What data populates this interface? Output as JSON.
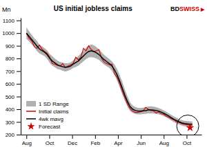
{
  "chart_data": {
    "type": "line",
    "title": "US initial jobless claims",
    "y_label": "Mn",
    "annotations": [
      {
        "text": "BD"
      },
      {
        "text": "SWISS",
        "color": "#cc0000"
      },
      {
        "text": "▶",
        "color": "#cc0000"
      }
    ],
    "xlim": [
      -0.5,
      15.3
    ],
    "xticks": [
      {
        "value": 0,
        "label": "Aug"
      },
      {
        "value": 2,
        "label": "Oct"
      },
      {
        "value": 4,
        "label": "Dec"
      },
      {
        "value": 6,
        "label": "Feb"
      },
      {
        "value": 8,
        "label": "Apr"
      },
      {
        "value": 10,
        "label": "Jun"
      },
      {
        "value": 12,
        "label": "Aug"
      },
      {
        "value": 14,
        "label": "Oct"
      }
    ],
    "ylim": [
      200,
      1120
    ],
    "yticks": [
      200,
      300,
      400,
      500,
      600,
      700,
      800,
      900,
      1000,
      1100
    ],
    "grid": false,
    "legend": "lower left",
    "x": [
      0,
      0.2265625,
      0.453125,
      0.6796875,
      0.90625,
      1.1328125,
      1.359375,
      1.5859375,
      1.8125,
      2.0390625,
      2.265625,
      2.4921875,
      2.71875,
      2.9453125,
      3.171875,
      3.3984375,
      3.625,
      3.8515625,
      4.078125,
      4.3046875,
      4.53125,
      4.7578125,
      4.984375,
      5.2109375,
      5.4375,
      5.6640625,
      5.890625,
      6.1171875,
      6.34375,
      6.5703125,
      6.796875,
      7.0234375,
      7.25,
      7.4765625,
      7.703125,
      7.9296875,
      8.15625,
      8.3828125,
      8.609375,
      8.8359375,
      9.0625,
      9.2890625,
      9.515625,
      9.7421875,
      9.96875,
      10.1953125,
      10.421875,
      10.6484375,
      10.875,
      11.1015625,
      11.328125,
      11.5546875,
      11.78125,
      12.0078125,
      12.234375,
      12.4609375,
      12.6875,
      12.9140625,
      13.140625,
      13.3671875,
      13.59375,
      13.8203125,
      14.046875,
      14.2734375,
      14.5
    ],
    "series": [
      {
        "name": "1 SD Range",
        "type": "area",
        "color": "#b0b0b0",
        "upper": [
          1045,
          1015,
          988,
          960,
          940,
          910,
          895,
          882,
          863,
          835,
          818,
          800,
          783,
          772,
          767,
          763,
          763,
          768,
          785,
          803,
          818,
          840,
          862,
          885,
          903,
          910,
          903,
          890,
          872,
          850,
          828,
          811,
          795,
          778,
          752,
          715,
          668,
          615,
          555,
          500,
          455,
          430,
          418,
          411,
          410,
          413,
          416,
          422,
          423,
          420,
          416,
          410,
          402,
          391,
          380,
          367,
          354,
          342,
          332,
          322,
          314,
          310,
          307,
          305,
          304
        ],
        "lower": [
          955,
          935,
          912,
          890,
          860,
          840,
          829,
          818,
          797,
          765,
          742,
          730,
          717,
          712,
          703,
          697,
          703,
          712,
          725,
          733,
          742,
          760,
          778,
          795,
          807,
          810,
          807,
          800,
          788,
          770,
          752,
          739,
          725,
          702,
          668,
          625,
          572,
          515,
          465,
          420,
          385,
          370,
          362,
          359,
          360,
          363,
          364,
          368,
          367,
          366,
          364,
          360,
          354,
          345,
          336,
          323,
          310,
          298,
          288,
          278,
          270,
          266,
          263,
          261,
          260
        ]
      },
      {
        "name": "Initial claims",
        "type": "line",
        "color": "#cc0000",
        "values": [
          1000,
          960,
          940,
          895,
          880,
          905,
          875,
          855,
          840,
          810,
          760,
          755,
          745,
          740,
          760,
          730,
          740,
          750,
          760,
          810,
          790,
          810,
          880,
          860,
          900,
          870,
          855,
          860,
          870,
          800,
          770,
          760,
          750,
          755,
          680,
          650,
          600,
          540,
          490,
          440,
          405,
          385,
          375,
          375,
          380,
          385,
          415,
          400,
          390,
          388,
          370,
          380,
          365,
          360,
          345,
          335,
          325,
          315,
          300,
          295,
          285,
          280,
          278,
          275,
          273
        ]
      },
      {
        "name": "4wk mavg",
        "type": "line",
        "color": "#000000",
        "values": [
          1000,
          975,
          950,
          925,
          900,
          875,
          862,
          850,
          830,
          800,
          780,
          765,
          750,
          742,
          735,
          730,
          733,
          740,
          755,
          768,
          780,
          800,
          820,
          840,
          855,
          860,
          855,
          845,
          830,
          810,
          790,
          775,
          760,
          740,
          710,
          670,
          620,
          565,
          510,
          460,
          420,
          400,
          390,
          385,
          385,
          388,
          390,
          395,
          395,
          393,
          390,
          385,
          378,
          368,
          358,
          345,
          332,
          320,
          310,
          300,
          292,
          288,
          285,
          283,
          282
        ]
      },
      {
        "name": "Forecast",
        "type": "scatter",
        "color": "#cc0000",
        "marker": "star",
        "x": [
          14.3
        ],
        "values": [
          255
        ]
      }
    ],
    "highlight": {
      "x": 14.1,
      "y": 268
    }
  }
}
